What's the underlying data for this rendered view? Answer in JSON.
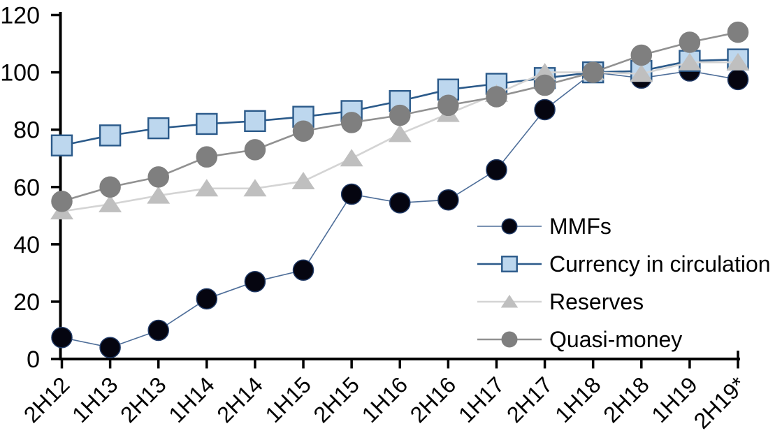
{
  "chart_data": {
    "type": "line",
    "title": "",
    "xlabel": "",
    "ylabel": "",
    "categories": [
      "2H12",
      "1H13",
      "2H13",
      "1H14",
      "2H14",
      "1H15",
      "2H15",
      "1H16",
      "2H16",
      "1H17",
      "2H17",
      "1H18",
      "2H18",
      "1H19",
      "2H19*"
    ],
    "series": [
      {
        "name": "MMFs",
        "marker": "circle",
        "marker_fill": "#050510",
        "marker_stroke": "#1F3864",
        "line_color": "#4E6E99",
        "line_width": 1.6,
        "values": [
          7.5,
          4,
          10,
          21,
          27,
          31,
          57.5,
          54.5,
          55.5,
          66,
          87,
          100,
          98,
          100.5,
          97.5
        ]
      },
      {
        "name": "Currency in circulation",
        "marker": "square",
        "marker_fill": "#BDD7EE",
        "marker_stroke": "#2B5A8A",
        "line_color": "#2B5A8A",
        "line_width": 2.6,
        "values": [
          74.5,
          78,
          80.5,
          82,
          83,
          84.5,
          86.5,
          90,
          94,
          96,
          98,
          100,
          100.5,
          104,
          104.5
        ]
      },
      {
        "name": "Reserves",
        "marker": "triangle",
        "marker_fill": "#BFBFBF",
        "marker_stroke": "#BFBFBF",
        "line_color": "#D4D4D4",
        "line_width": 2.6,
        "values": [
          51.5,
          54,
          57,
          59.5,
          59.5,
          62,
          70,
          78.5,
          85.5,
          92.5,
          100,
          100,
          99.5,
          103.5,
          103.5
        ]
      },
      {
        "name": "Quasi-money",
        "marker": "circle",
        "marker_fill": "#7F7F7F",
        "marker_stroke": "#7F7F7F",
        "line_color": "#919191",
        "line_width": 2.6,
        "values": [
          55,
          60,
          63.5,
          70.5,
          73,
          79.5,
          82.5,
          85,
          88.5,
          91.5,
          95.5,
          100,
          106,
          110.5,
          114
        ]
      }
    ],
    "ylim": [
      0,
      120
    ],
    "yticks": [
      0,
      20,
      40,
      60,
      80,
      100,
      120
    ],
    "grid": false,
    "legend_position": "inside-right",
    "axis_color": "#000000",
    "text_color": "#000000",
    "background": "#FFFFFF"
  }
}
